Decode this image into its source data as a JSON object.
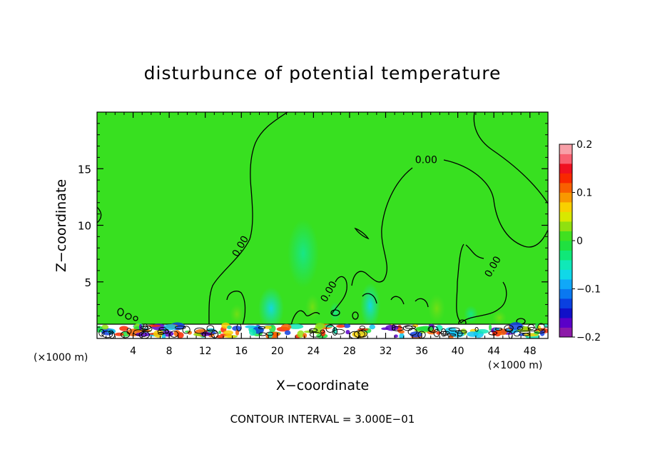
{
  "chart_data": {
    "type": "heatmap",
    "title": "disturbunce of potential temperature",
    "xlabel": "X−coordinate",
    "ylabel": "Z−coordinate",
    "x_unit_left": "(×1000 m)",
    "x_unit_right": "(×1000 m)",
    "footer": "CONTOUR INTERVAL = 3.000E−01",
    "xlim": [
      0,
      50
    ],
    "ylim": [
      0,
      20
    ],
    "x_ticks": [
      4,
      8,
      12,
      16,
      20,
      24,
      28,
      32,
      36,
      40,
      44,
      48
    ],
    "x_tick_labels": [
      "4",
      "8",
      "12",
      "16",
      "20",
      "24",
      "28",
      "32",
      "36",
      "40",
      "44",
      "48"
    ],
    "y_ticks": [
      5,
      10,
      15
    ],
    "y_tick_labels": [
      "5",
      "10",
      "15"
    ],
    "contour_labels": [
      {
        "text": "0.00",
        "x": 36.5,
        "y": 15.5
      },
      {
        "text": "0.00",
        "x": 16.2,
        "y": 8.0
      },
      {
        "text": "0.00",
        "x": 26.0,
        "y": 4.0
      },
      {
        "text": "0.00",
        "x": 44.2,
        "y": 6.2
      }
    ],
    "colorbar": {
      "min": -0.2,
      "max": 0.2,
      "tick_values": [
        0.2,
        0.1,
        0,
        -0.1,
        -0.2
      ],
      "tick_labels": [
        "0.2",
        "0.1",
        "0",
        "−0.1",
        "−0.2"
      ],
      "colors": [
        "#8c1aa8",
        "#5a00c8",
        "#1010c8",
        "#0a40e0",
        "#0a78f0",
        "#10a8f8",
        "#10d8e8",
        "#10e8b8",
        "#10e878",
        "#20e040",
        "#40e020",
        "#90e010",
        "#d8e800",
        "#f8d000",
        "#f89800",
        "#f86000",
        "#f82800",
        "#f01020",
        "#f86070",
        "#f8a0a8"
      ]
    },
    "background_value": 0.0
  }
}
